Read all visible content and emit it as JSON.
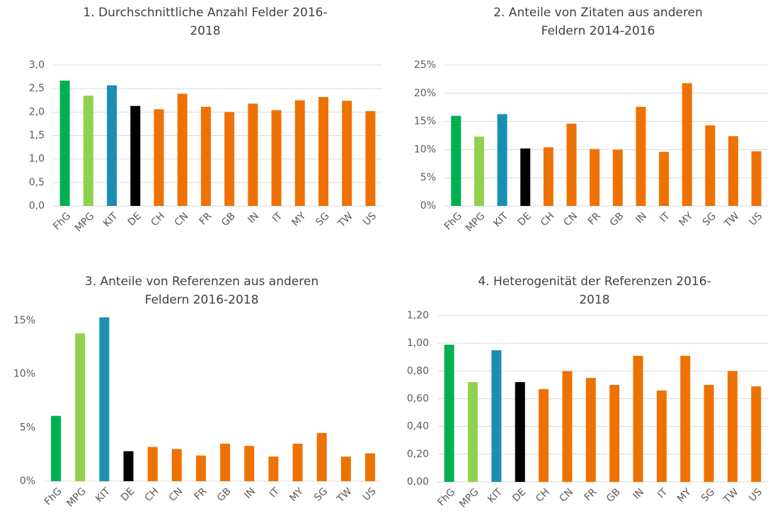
{
  "chart_data": [
    {
      "type": "bar",
      "title": [
        "1. Durchschnittliche Anzahl Felder 2016-",
        "2018"
      ],
      "categories": [
        "FhG",
        "MPG",
        "KIT",
        "DE",
        "CH",
        "CN",
        "FR",
        "GB",
        "IN",
        "IT",
        "MY",
        "SG",
        "TW",
        "US"
      ],
      "values": [
        2.67,
        2.35,
        2.57,
        2.13,
        2.06,
        2.39,
        2.11,
        2.0,
        2.18,
        2.04,
        2.25,
        2.32,
        2.24,
        2.02
      ],
      "colors": [
        "#00b050",
        "#92d050",
        "#1a8fb3",
        "#000000",
        "#ee7203",
        "#ee7203",
        "#ee7203",
        "#ee7203",
        "#ee7203",
        "#ee7203",
        "#ee7203",
        "#ee7203",
        "#ee7203",
        "#ee7203"
      ],
      "ylim": [
        0,
        3
      ],
      "yticks": [
        {
          "value": 0,
          "label": "0,0"
        },
        {
          "value": 0.5,
          "label": "0,5"
        },
        {
          "value": 1,
          "label": "1,0"
        },
        {
          "value": 1.5,
          "label": "1,5"
        },
        {
          "value": 2,
          "label": "2,0"
        },
        {
          "value": 2.5,
          "label": "2,5"
        },
        {
          "value": 3,
          "label": "3,0"
        }
      ],
      "grid": true
    },
    {
      "type": "bar",
      "title": [
        "2. Anteile von Zitaten aus anderen",
        "Feldern 2014-2016"
      ],
      "categories": [
        "FhG",
        "MPG",
        "KIT",
        "DE",
        "CH",
        "CN",
        "FR",
        "GB",
        "IN",
        "IT",
        "MY",
        "SG",
        "TW",
        "US"
      ],
      "values": [
        16.0,
        12.3,
        16.3,
        10.2,
        10.4,
        14.6,
        10.1,
        10.0,
        17.6,
        9.6,
        21.8,
        14.3,
        12.4,
        9.7
      ],
      "colors": [
        "#00b050",
        "#92d050",
        "#1a8fb3",
        "#000000",
        "#ee7203",
        "#ee7203",
        "#ee7203",
        "#ee7203",
        "#ee7203",
        "#ee7203",
        "#ee7203",
        "#ee7203",
        "#ee7203",
        "#ee7203"
      ],
      "ylim": [
        0,
        25
      ],
      "yticks": [
        {
          "value": 0,
          "label": "0%"
        },
        {
          "value": 5,
          "label": "5%"
        },
        {
          "value": 10,
          "label": "10%"
        },
        {
          "value": 15,
          "label": "15%"
        },
        {
          "value": 20,
          "label": "20%"
        },
        {
          "value": 25,
          "label": "25%"
        }
      ],
      "grid": true
    },
    {
      "type": "bar",
      "title": [
        "3. Anteile von Referenzen aus anderen",
        "Feldern 2016-2018"
      ],
      "categories": [
        "FhG",
        "MPG",
        "KIT",
        "DE",
        "CH",
        "CN",
        "FR",
        "GB",
        "IN",
        "IT",
        "MY",
        "SG",
        "TW",
        "US"
      ],
      "values": [
        6.1,
        13.8,
        15.3,
        2.8,
        3.2,
        3.0,
        2.4,
        3.5,
        3.3,
        2.3,
        3.5,
        4.5,
        2.3,
        2.6
      ],
      "colors": [
        "#00b050",
        "#92d050",
        "#1a8fb3",
        "#000000",
        "#ee7203",
        "#ee7203",
        "#ee7203",
        "#ee7203",
        "#ee7203",
        "#ee7203",
        "#ee7203",
        "#ee7203",
        "#ee7203",
        "#ee7203"
      ],
      "ylim": [
        0,
        15
      ],
      "yticks": [
        {
          "value": 0,
          "label": "0%"
        },
        {
          "value": 5,
          "label": "5%"
        },
        {
          "value": 10,
          "label": "10%"
        },
        {
          "value": 15,
          "label": "15%"
        }
      ],
      "grid": false
    },
    {
      "type": "bar",
      "title": [
        "4. Heterogenität der Referenzen 2016-",
        "2018"
      ],
      "categories": [
        "FhG",
        "MPG",
        "KIT",
        "DE",
        "CH",
        "CN",
        "FR",
        "GB",
        "IN",
        "IT",
        "MY",
        "SG",
        "TW",
        "US"
      ],
      "values": [
        0.99,
        0.72,
        0.95,
        0.72,
        0.67,
        0.8,
        0.75,
        0.7,
        0.91,
        0.66,
        0.91,
        0.7,
        0.8,
        0.69
      ],
      "colors": [
        "#00b050",
        "#92d050",
        "#1a8fb3",
        "#000000",
        "#ee7203",
        "#ee7203",
        "#ee7203",
        "#ee7203",
        "#ee7203",
        "#ee7203",
        "#ee7203",
        "#ee7203",
        "#ee7203",
        "#ee7203"
      ],
      "ylim": [
        0,
        1.2
      ],
      "yticks": [
        {
          "value": 0,
          "label": "0,00"
        },
        {
          "value": 0.2,
          "label": "0,20"
        },
        {
          "value": 0.4,
          "label": "0,40"
        },
        {
          "value": 0.6,
          "label": "0,60"
        },
        {
          "value": 0.8,
          "label": "0,80"
        },
        {
          "value": 1,
          "label": "1,00"
        },
        {
          "value": 1.2,
          "label": "1,20"
        }
      ],
      "grid": true
    }
  ]
}
